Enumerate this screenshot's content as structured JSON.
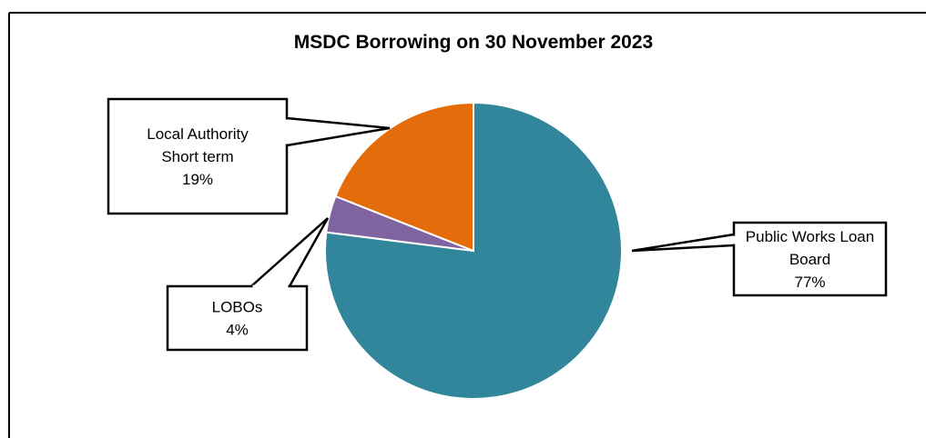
{
  "chart_data": {
    "type": "pie",
    "title": "MSDC Borrowing on 30 November 2023",
    "slices": [
      {
        "name": "Public Works Loan Board",
        "label_lines": [
          "Public Works Loan",
          "Board"
        ],
        "value": 77,
        "value_label": "77%",
        "color": "#31869b"
      },
      {
        "name": "LOBOs",
        "label_lines": [
          "LOBOs"
        ],
        "value": 4,
        "value_label": "4%",
        "color": "#8064a2"
      },
      {
        "name": "Local Authority Short term",
        "label_lines": [
          "Local Authority",
          "Short term"
        ],
        "value": 19,
        "value_label": "19%",
        "color": "#e46c0a"
      }
    ],
    "legend": "none"
  }
}
